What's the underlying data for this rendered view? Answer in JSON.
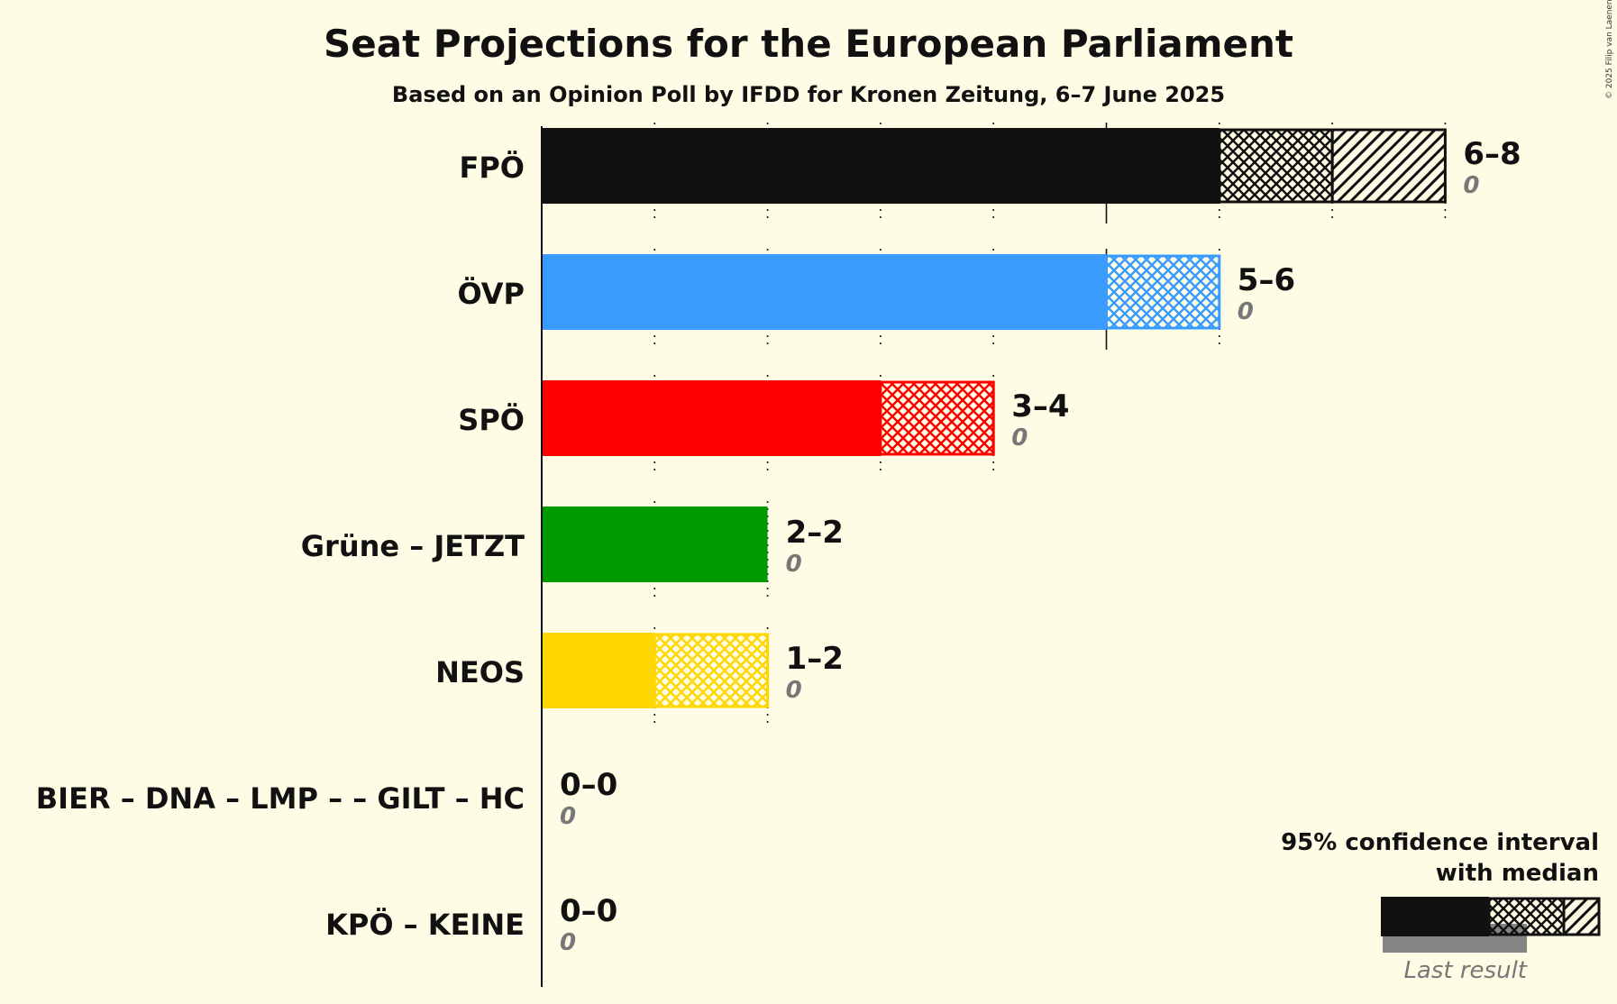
{
  "chart_data": {
    "type": "bar",
    "title": "Seat Projections for the European Parliament",
    "subtitle": "Based on an Opinion Poll by IFDD for Kronen Zeitung, 6–7 June 2025",
    "copyright": "© 2025 Filip van Laenen",
    "categories": [
      "FPÖ",
      "ÖVP",
      "SPÖ",
      "Grüne – JETZT",
      "NEOS",
      "BIER – DNA – LMP – – GILT – HC",
      "KPÖ – KEINE"
    ],
    "series": [
      {
        "party": "FPÖ",
        "low": 6,
        "median": 7,
        "high": 8,
        "last_result": 0,
        "range_label": "6–8",
        "last_label": "0",
        "color": "#111111"
      },
      {
        "party": "ÖVP",
        "low": 5,
        "median": 6,
        "high": 6,
        "last_result": 0,
        "range_label": "5–6",
        "last_label": "0",
        "color": "#3a9bff"
      },
      {
        "party": "SPÖ",
        "low": 3,
        "median": 4,
        "high": 4,
        "last_result": 0,
        "range_label": "3–4",
        "last_label": "0",
        "color": "#ff0000"
      },
      {
        "party": "Grüne – JETZT",
        "low": 2,
        "median": 2,
        "high": 2,
        "last_result": 0,
        "range_label": "2–2",
        "last_label": "0",
        "color": "#009900"
      },
      {
        "party": "NEOS",
        "low": 1,
        "median": 2,
        "high": 2,
        "last_result": 0,
        "range_label": "1–2",
        "last_label": "0",
        "color": "#ffd700"
      },
      {
        "party": "BIER – DNA – LMP – – GILT – HC",
        "low": 0,
        "median": 0,
        "high": 0,
        "last_result": 0,
        "range_label": "0–0",
        "last_label": "0",
        "color": "#888888"
      },
      {
        "party": "KPÖ – KEINE",
        "low": 0,
        "median": 0,
        "high": 0,
        "last_result": 0,
        "range_label": "0–0",
        "last_label": "0",
        "color": "#888888"
      }
    ],
    "xlim": [
      0,
      8
    ],
    "gridlines": "dotted at every seat, solid at multiples of 5",
    "legend": {
      "position": "bottom-right",
      "line1": "95% confidence interval",
      "line2": "with median",
      "last_result_label": "Last result"
    }
  }
}
